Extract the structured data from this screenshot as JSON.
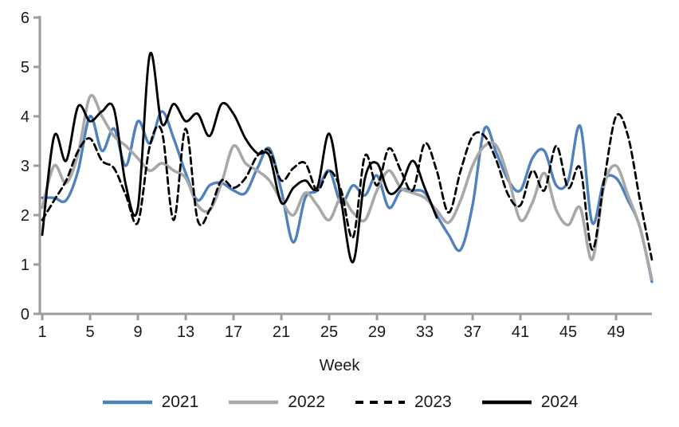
{
  "chart_data": {
    "type": "line",
    "title": "",
    "xlabel": "Week",
    "ylabel": "",
    "x_start": 1,
    "x_ticks": [
      1,
      5,
      9,
      13,
      17,
      21,
      25,
      29,
      33,
      37,
      41,
      45,
      49
    ],
    "y_ticks": [
      0,
      1,
      2,
      3,
      4,
      5,
      6
    ],
    "xlim": [
      1,
      52
    ],
    "ylim": [
      0,
      6
    ],
    "grid": false,
    "legend_position": "bottom",
    "axis_color": "#9c9c9c",
    "text_color": "#1a1a1a",
    "series": [
      {
        "name": "2021",
        "color": "#4F81BD",
        "style": "solid",
        "width": 3.4,
        "values": [
          2.35,
          2.35,
          2.3,
          2.9,
          4.0,
          3.3,
          3.75,
          3.0,
          3.9,
          3.45,
          4.1,
          3.55,
          2.85,
          2.3,
          2.6,
          2.65,
          2.5,
          2.45,
          2.95,
          3.35,
          2.5,
          1.45,
          2.35,
          2.5,
          2.9,
          2.25,
          2.6,
          2.4,
          2.8,
          2.15,
          2.5,
          2.5,
          2.45,
          2.0,
          1.6,
          1.3,
          2.2,
          3.75,
          3.25,
          2.7,
          2.5,
          3.15,
          3.3,
          2.6,
          2.7,
          3.8,
          1.85,
          2.7,
          2.75,
          2.3,
          1.75,
          0.65
        ]
      },
      {
        "name": "2022",
        "color": "#A8A8A8",
        "style": "solid",
        "width": 3.6,
        "values": [
          2.15,
          3.0,
          2.65,
          3.25,
          4.4,
          4.0,
          3.6,
          3.4,
          3.15,
          2.9,
          3.05,
          2.9,
          2.75,
          2.2,
          2.1,
          2.65,
          3.4,
          3.05,
          2.9,
          2.7,
          2.3,
          2.0,
          2.45,
          2.2,
          1.9,
          2.35,
          2.05,
          1.9,
          2.5,
          2.9,
          2.55,
          2.45,
          2.35,
          2.1,
          1.85,
          2.3,
          3.0,
          3.4,
          3.4,
          2.75,
          1.9,
          2.25,
          2.85,
          2.1,
          1.8,
          2.15,
          1.1,
          2.6,
          3.0,
          2.4,
          1.75,
          0.7
        ]
      },
      {
        "name": "2023",
        "color": "#000000",
        "style": "dashed",
        "width": 2.8,
        "values": [
          1.9,
          2.3,
          2.7,
          3.3,
          3.55,
          3.1,
          2.95,
          2.4,
          1.85,
          3.4,
          3.7,
          1.9,
          3.75,
          1.9,
          2.1,
          2.7,
          2.55,
          2.75,
          3.2,
          3.3,
          2.7,
          2.95,
          3.05,
          2.5,
          2.9,
          2.5,
          1.55,
          3.2,
          2.6,
          3.35,
          2.9,
          2.5,
          3.45,
          2.9,
          2.05,
          2.9,
          3.6,
          3.6,
          3.1,
          2.4,
          2.2,
          2.9,
          2.5,
          3.4,
          2.55,
          2.95,
          1.3,
          2.7,
          4.0,
          3.6,
          2.3,
          1.1
        ]
      },
      {
        "name": "2024",
        "color": "#000000",
        "style": "solid",
        "width": 2.9,
        "values": [
          1.6,
          3.6,
          3.1,
          4.2,
          3.9,
          4.1,
          4.15,
          2.6,
          2.15,
          5.25,
          3.85,
          4.25,
          3.9,
          4.05,
          3.6,
          4.25,
          4.05,
          3.55,
          3.25,
          3.2,
          2.25,
          2.55,
          2.7,
          2.55,
          3.65,
          2.3,
          1.05,
          2.75,
          3.05,
          2.45,
          2.6,
          3.1,
          2.55,
          1.95
        ]
      }
    ]
  }
}
